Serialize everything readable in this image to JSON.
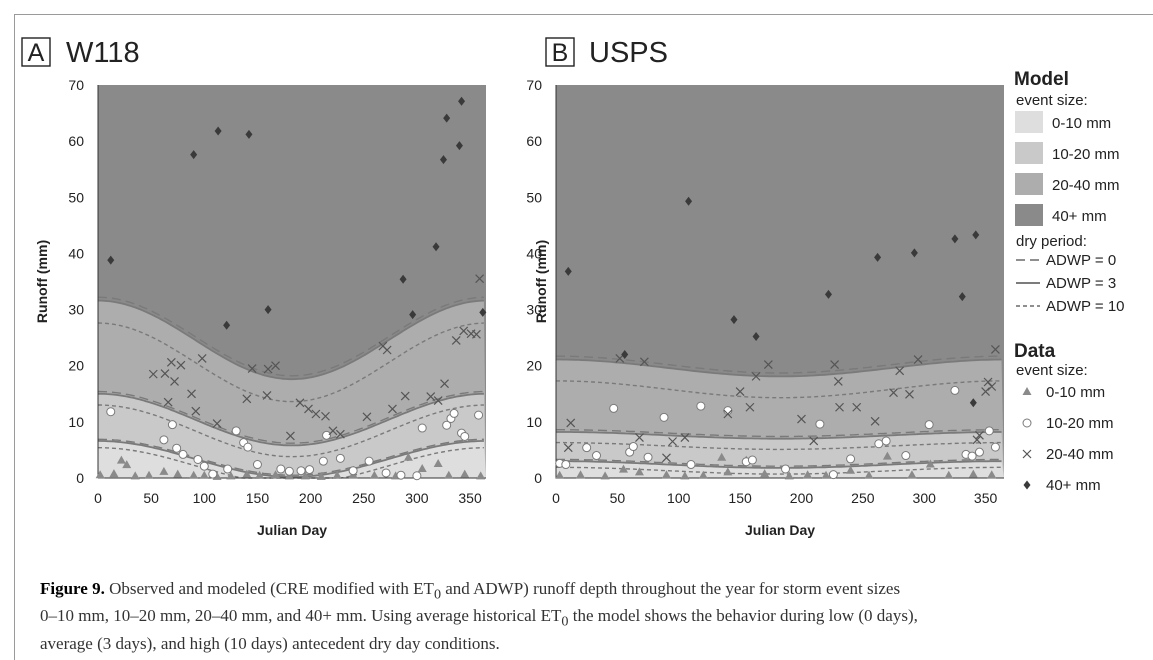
{
  "chart_data": [
    {
      "type": "scatter",
      "panel_letter": "A",
      "title": "W118",
      "xlabel": "Julian Day",
      "ylabel": "Runoff (mm)",
      "xlim": [
        0,
        365
      ],
      "ylim": [
        0,
        70
      ],
      "xticks": [
        "0",
        "50",
        "100",
        "150",
        "200",
        "250",
        "300",
        "350"
      ],
      "yticks": [
        "0",
        "10",
        "20",
        "30",
        "40",
        "50",
        "60",
        "70"
      ],
      "model": {
        "band_tops_adwp3": {
          "amp": [
            3.2,
            4.6,
            7.0
          ],
          "mean": [
            3.4,
            10.4,
            24.6
          ]
        },
        "adwp0_offset": [
          0.3,
          0.4,
          0.6
        ],
        "adwp10_offset": [
          -1.2,
          -2.0,
          -4.0
        ]
      },
      "series": [
        {
          "name": "0-10 mm",
          "marker": "triangle",
          "points": [
            [
              2,
              0.5
            ],
            [
              15,
              0.7
            ],
            [
              22,
              3.1
            ],
            [
              27,
              2.3
            ],
            [
              35,
              0.3
            ],
            [
              48,
              0.4
            ],
            [
              62,
              1.1
            ],
            [
              75,
              0.6
            ],
            [
              90,
              0.4
            ],
            [
              100,
              0.4
            ],
            [
              112,
              0.2
            ],
            [
              125,
              0.3
            ],
            [
              140,
              0.6
            ],
            [
              152,
              0.4
            ],
            [
              167,
              0.5
            ],
            [
              180,
              0.3
            ],
            [
              195,
              0.3
            ],
            [
              210,
              0.2
            ],
            [
              225,
              0.4
            ],
            [
              240,
              0.5
            ],
            [
              260,
              0.4
            ],
            [
              280,
              0.3
            ],
            [
              292,
              3.6
            ],
            [
              305,
              1.6
            ],
            [
              320,
              2.5
            ],
            [
              330,
              0.4
            ],
            [
              345,
              0.6
            ],
            [
              360,
              0.3
            ]
          ]
        },
        {
          "name": "10-20 mm",
          "marker": "circle",
          "points": [
            [
              12,
              11.8
            ],
            [
              62,
              6.8
            ],
            [
              70,
              9.5
            ],
            [
              74,
              5.3
            ],
            [
              80,
              4.2
            ],
            [
              94,
              3.3
            ],
            [
              100,
              2.1
            ],
            [
              108,
              0.7
            ],
            [
              122,
              1.6
            ],
            [
              130,
              8.4
            ],
            [
              137,
              6.3
            ],
            [
              141,
              5.5
            ],
            [
              150,
              2.4
            ],
            [
              172,
              1.6
            ],
            [
              180,
              1.2
            ],
            [
              191,
              1.3
            ],
            [
              199,
              1.5
            ],
            [
              212,
              3.0
            ],
            [
              215,
              7.6
            ],
            [
              228,
              3.5
            ],
            [
              240,
              1.3
            ],
            [
              255,
              3.0
            ],
            [
              271,
              0.9
            ],
            [
              285,
              0.5
            ],
            [
              300,
              0.4
            ],
            [
              305,
              8.9
            ],
            [
              328,
              9.4
            ],
            [
              332,
              10.6
            ],
            [
              335,
              11.5
            ],
            [
              342,
              8.0
            ],
            [
              345,
              7.4
            ],
            [
              358,
              11.2
            ]
          ]
        },
        {
          "name": "20-40 mm",
          "marker": "x",
          "points": [
            [
              52,
              18.5
            ],
            [
              63,
              18.6
            ],
            [
              66,
              13.5
            ],
            [
              69,
              20.6
            ],
            [
              72,
              17.2
            ],
            [
              78,
              20.1
            ],
            [
              88,
              15.0
            ],
            [
              92,
              11.9
            ],
            [
              98,
              21.3
            ],
            [
              112,
              9.7
            ],
            [
              140,
              14.1
            ],
            [
              145,
              19.5
            ],
            [
              159,
              14.7
            ],
            [
              160,
              19.4
            ],
            [
              167,
              20.0
            ],
            [
              181,
              7.5
            ],
            [
              190,
              13.4
            ],
            [
              198,
              12.3
            ],
            [
              205,
              11.4
            ],
            [
              214,
              11.0
            ],
            [
              221,
              8.4
            ],
            [
              228,
              7.8
            ],
            [
              253,
              10.9
            ],
            [
              268,
              23.5
            ],
            [
              272,
              22.8
            ],
            [
              277,
              12.3
            ],
            [
              289,
              14.6
            ],
            [
              313,
              14.5
            ],
            [
              320,
              13.8
            ],
            [
              326,
              16.8
            ],
            [
              337,
              24.5
            ],
            [
              344,
              26.2
            ],
            [
              351,
              25.7
            ],
            [
              356,
              25.6
            ],
            [
              359,
              35.5
            ]
          ]
        },
        {
          "name": "40+ mm",
          "marker": "diamond",
          "points": [
            [
              12,
              38.8
            ],
            [
              90,
              57.6
            ],
            [
              113,
              61.8
            ],
            [
              121,
              27.2
            ],
            [
              142,
              61.2
            ],
            [
              160,
              30.0
            ],
            [
              287,
              35.4
            ],
            [
              296,
              29.1
            ],
            [
              318,
              41.2
            ],
            [
              325,
              56.7
            ],
            [
              328,
              64.1
            ],
            [
              340,
              59.2
            ],
            [
              342,
              67.1
            ],
            [
              362,
              29.5
            ]
          ]
        }
      ]
    },
    {
      "type": "scatter",
      "panel_letter": "B",
      "title": "USPS",
      "xlabel": "Julian Day",
      "ylabel": "Runoff (mm)",
      "xlim": [
        0,
        365
      ],
      "ylim": [
        0,
        70
      ],
      "xticks": [
        "0",
        "50",
        "100",
        "150",
        "200",
        "250",
        "300",
        "350"
      ],
      "yticks": [
        "0",
        "10",
        "20",
        "30",
        "40",
        "50",
        "60",
        "70"
      ],
      "model": {
        "band_tops_adwp3": {
          "amp": [
            0.6,
            0.6,
            1.5
          ],
          "mean": [
            2.4,
            7.6,
            19.6
          ]
        },
        "adwp0_offset": [
          0.3,
          0.4,
          0.6
        ],
        "adwp10_offset": [
          -1.1,
          -1.9,
          -3.8
        ]
      },
      "series": [
        {
          "name": "0-10 mm",
          "marker": "triangle",
          "points": [
            [
              3,
              0.4
            ],
            [
              20,
              0.5
            ],
            [
              40,
              0.3
            ],
            [
              55,
              1.5
            ],
            [
              68,
              1.0
            ],
            [
              90,
              0.5
            ],
            [
              105,
              0.3
            ],
            [
              120,
              0.4
            ],
            [
              135,
              3.6
            ],
            [
              140,
              1.0
            ],
            [
              155,
              3.1
            ],
            [
              170,
              0.7
            ],
            [
              190,
              0.3
            ],
            [
              205,
              0.5
            ],
            [
              220,
              0.4
            ],
            [
              240,
              1.3
            ],
            [
              255,
              0.4
            ],
            [
              270,
              3.8
            ],
            [
              290,
              0.5
            ],
            [
              305,
              2.4
            ],
            [
              320,
              0.4
            ],
            [
              340,
              0.6
            ],
            [
              355,
              0.5
            ]
          ]
        },
        {
          "name": "10-20 mm",
          "marker": "circle",
          "points": [
            [
              3,
              2.6
            ],
            [
              8,
              2.4
            ],
            [
              25,
              5.4
            ],
            [
              33,
              4.0
            ],
            [
              47,
              12.4
            ],
            [
              60,
              4.6
            ],
            [
              63,
              5.6
            ],
            [
              75,
              3.7
            ],
            [
              88,
              10.8
            ],
            [
              110,
              2.4
            ],
            [
              118,
              12.8
            ],
            [
              140,
              12.0
            ],
            [
              155,
              2.9
            ],
            [
              160,
              3.2
            ],
            [
              187,
              1.6
            ],
            [
              215,
              9.6
            ],
            [
              226,
              0.6
            ],
            [
              240,
              3.4
            ],
            [
              263,
              6.1
            ],
            [
              269,
              6.6
            ],
            [
              285,
              4.0
            ],
            [
              304,
              9.5
            ],
            [
              325,
              15.6
            ],
            [
              334,
              4.2
            ],
            [
              339,
              3.9
            ],
            [
              345,
              4.6
            ],
            [
              353,
              8.4
            ],
            [
              358,
              5.5
            ]
          ]
        },
        {
          "name": "20-40 mm",
          "marker": "x",
          "points": [
            [
              10,
              5.4
            ],
            [
              12,
              9.8
            ],
            [
              52,
              21.3
            ],
            [
              68,
              7.2
            ],
            [
              72,
              20.7
            ],
            [
              90,
              3.6
            ],
            [
              95,
              6.5
            ],
            [
              105,
              7.2
            ],
            [
              140,
              11.4
            ],
            [
              150,
              15.4
            ],
            [
              158,
              12.6
            ],
            [
              163,
              18.1
            ],
            [
              173,
              20.2
            ],
            [
              200,
              10.5
            ],
            [
              210,
              6.6
            ],
            [
              227,
              20.2
            ],
            [
              230,
              17.2
            ],
            [
              231,
              12.6
            ],
            [
              245,
              12.6
            ],
            [
              260,
              10.1
            ],
            [
              275,
              15.2
            ],
            [
              280,
              19.1
            ],
            [
              288,
              14.9
            ],
            [
              295,
              21.1
            ],
            [
              343,
              6.8
            ],
            [
              345,
              7.6
            ],
            [
              350,
              15.4
            ],
            [
              352,
              17.1
            ],
            [
              355,
              16.3
            ],
            [
              358,
              22.9
            ]
          ]
        },
        {
          "name": "40+ mm",
          "marker": "diamond",
          "points": [
            [
              10,
              36.8
            ],
            [
              56,
              22.0
            ],
            [
              108,
              49.3
            ],
            [
              145,
              28.2
            ],
            [
              163,
              25.2
            ],
            [
              222,
              32.7
            ],
            [
              262,
              39.3
            ],
            [
              292,
              40.1
            ],
            [
              325,
              42.6
            ],
            [
              331,
              32.3
            ],
            [
              340,
              13.4
            ],
            [
              342,
              43.3
            ]
          ]
        }
      ]
    }
  ],
  "legend": {
    "model_heading": "Model",
    "model_subheading": "event size:",
    "bands": [
      {
        "label": "0-10 mm",
        "color": "#dedede"
      },
      {
        "label": "10-20 mm",
        "color": "#c9c9c9"
      },
      {
        "label": "20-40 mm",
        "color": "#adadad"
      },
      {
        "label": "40+ mm",
        "color": "#8a8a8a"
      }
    ],
    "dry_heading": "dry period:",
    "lines": [
      {
        "label": "ADWP = 0",
        "style": "dash"
      },
      {
        "label": "ADWP = 3",
        "style": "solid"
      },
      {
        "label": "ADWP = 10",
        "style": "dot"
      }
    ],
    "data_heading": "Data",
    "data_subheading": "event size:",
    "markers": [
      {
        "label": "0-10 mm",
        "marker": "triangle"
      },
      {
        "label": "10-20 mm",
        "marker": "circle"
      },
      {
        "label": "20-40 mm",
        "marker": "x"
      },
      {
        "label": "40+ mm",
        "marker": "diamond"
      }
    ]
  },
  "caption": {
    "label": "Figure 9.",
    "line1": " Observed and modeled (CRE modified with ET",
    "sub0": "0",
    "line1b": " and ADWP) runoff depth throughout the year for storm event sizes",
    "line2": "0–10 mm, 10–20 mm, 20–40 mm, and 40+  mm. Using average historical ET",
    "line2b": " the model shows the behavior during low (0 days),",
    "line3": "average (3 days), and high (10 days) antecedent dry day conditions."
  },
  "colors": {
    "band_0_10": "#dedede",
    "band_10_20": "#c9c9c9",
    "band_20_40": "#adadad",
    "band_40_plus": "#8a8a8a",
    "line": "#7a7a7a",
    "marker_dark": "#3a3a3a",
    "marker_grey": "#8a8a8a"
  }
}
